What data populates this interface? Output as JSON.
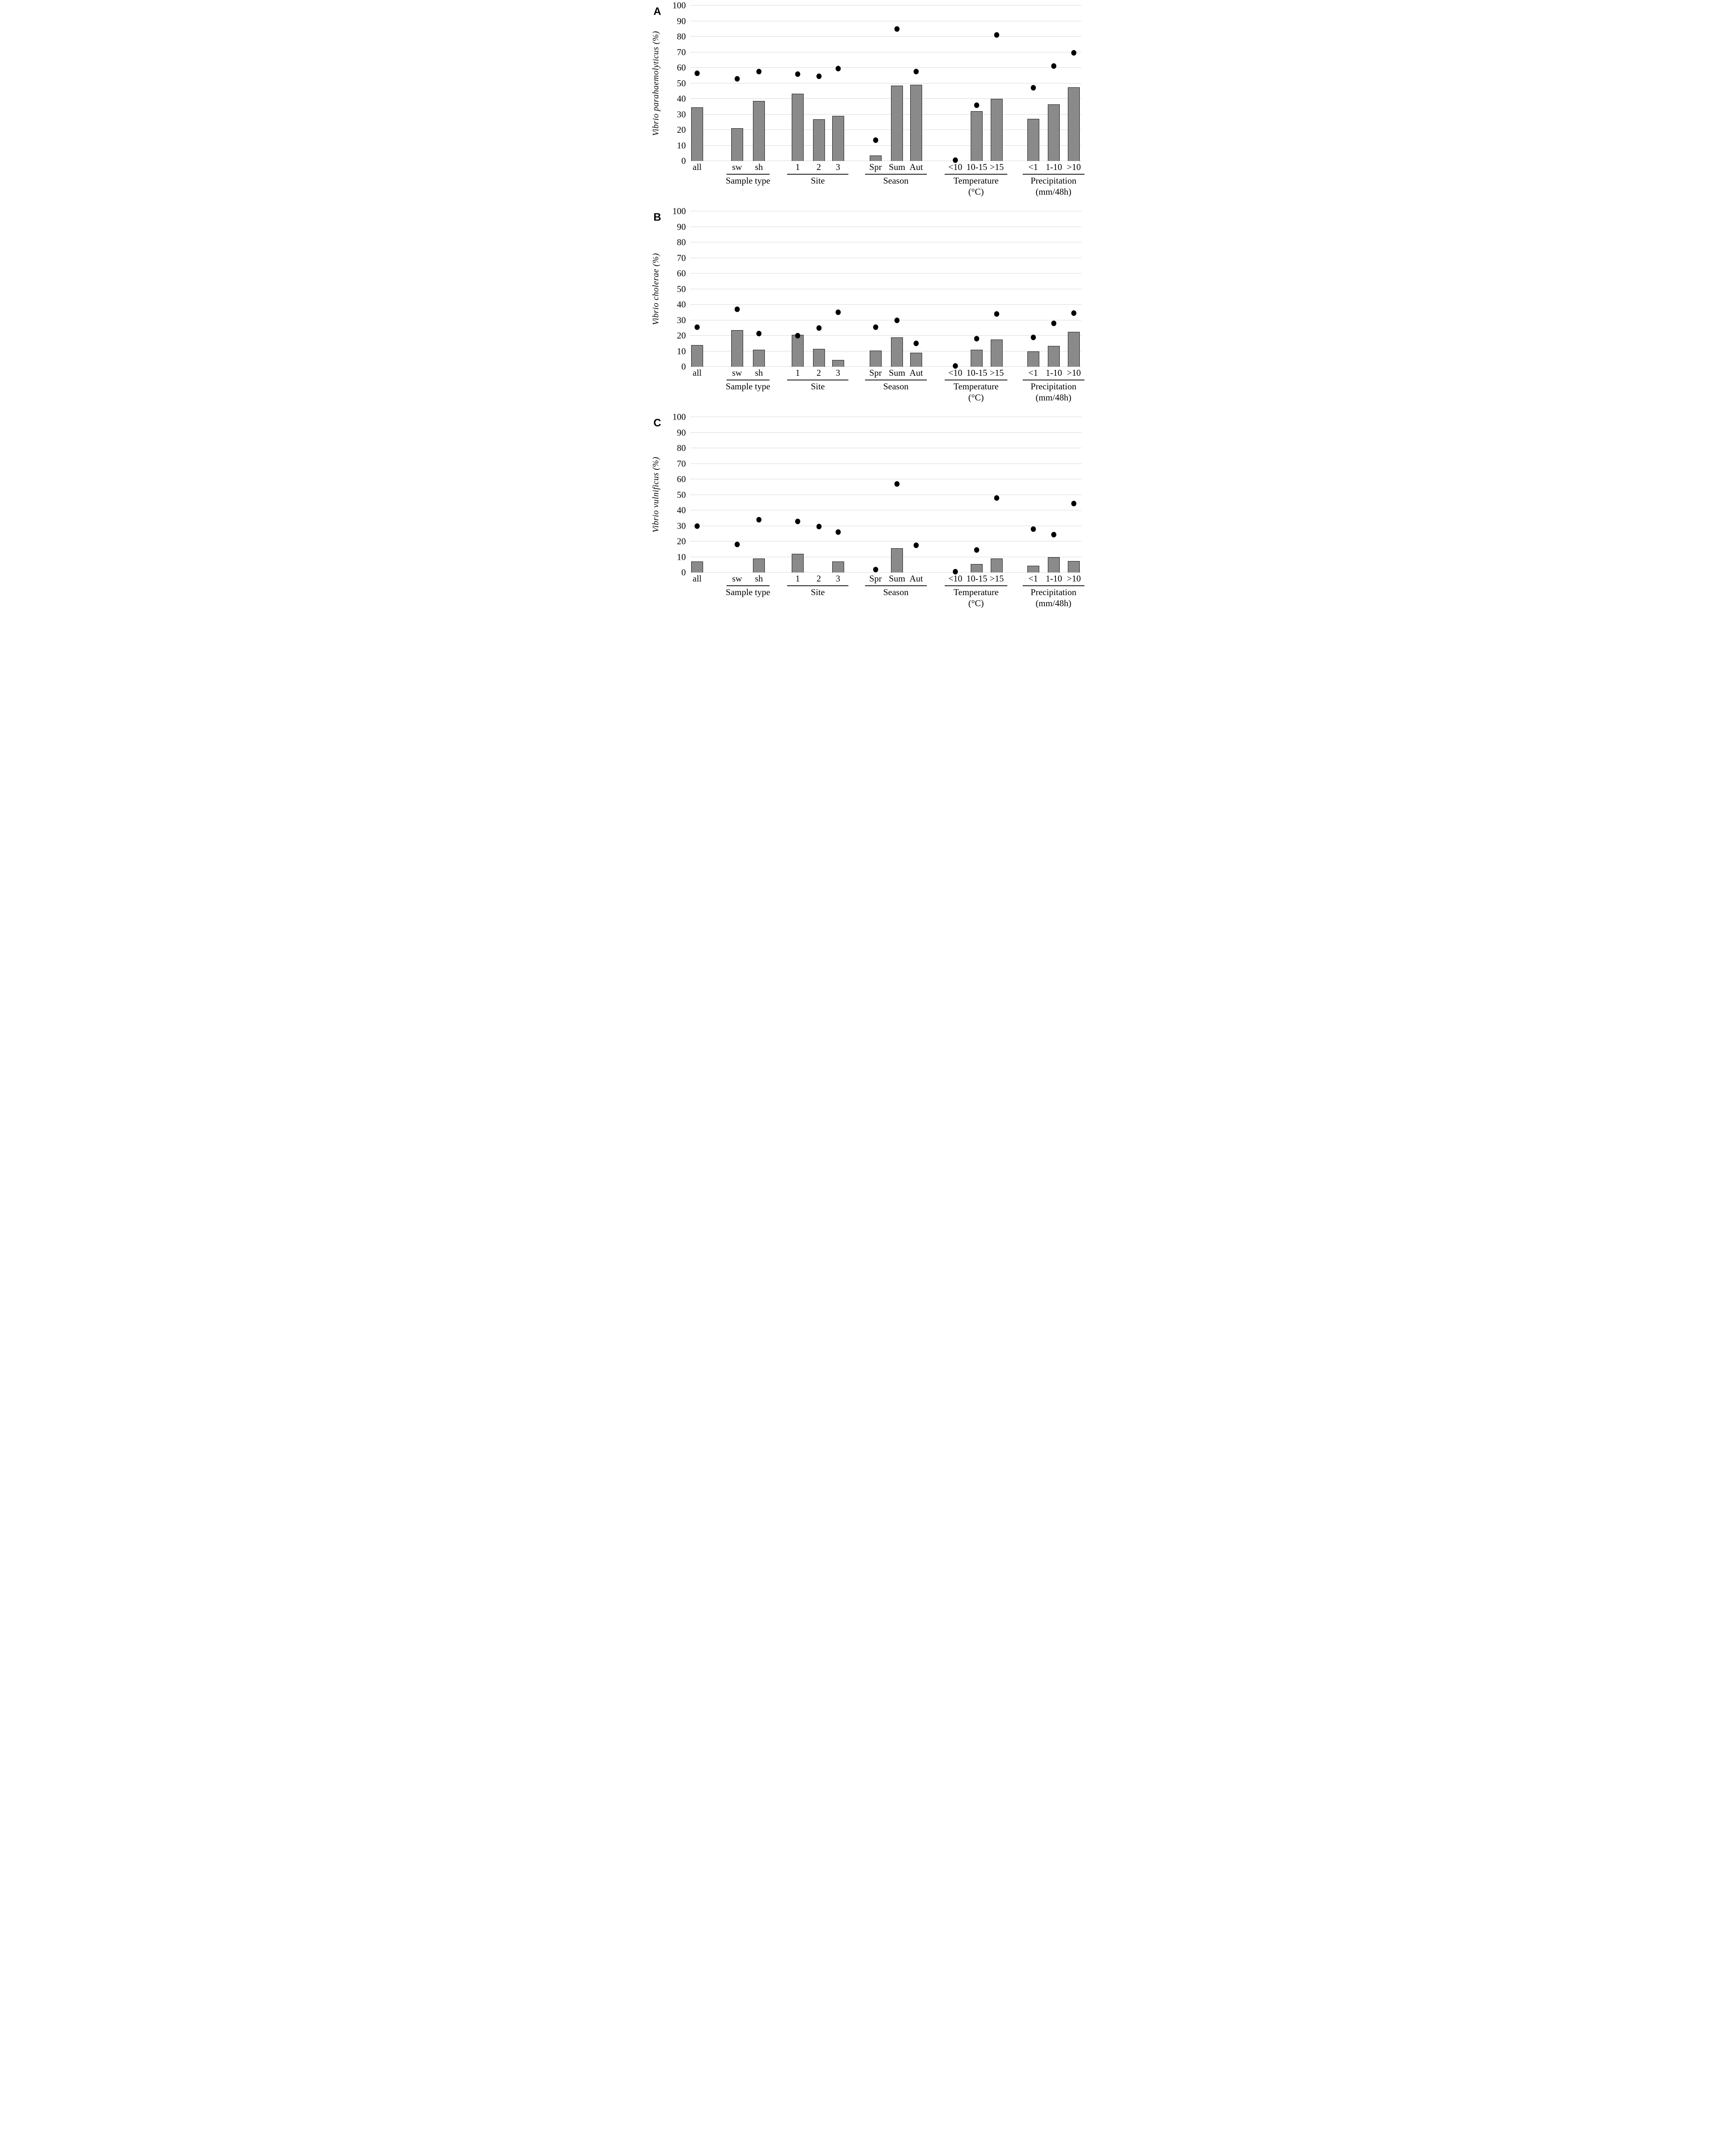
{
  "figure_title": "",
  "chart_data": {
    "type": "bar",
    "subtype": "bar-with-dot-overlay",
    "grid": true,
    "legend": "none",
    "ylim": [
      0,
      100
    ],
    "yticks": [
      0,
      10,
      20,
      30,
      40,
      50,
      60,
      70,
      80,
      90,
      100
    ],
    "colors": {
      "bar_fill": "#8a8a8a",
      "bar_border": "#1a1a1a",
      "dot": "#000000",
      "gridline": "#d9d9d9",
      "text": "#000000",
      "background": "#ffffff"
    },
    "panels": [
      {
        "letter": "A",
        "ylabel": "Vibrio parahaemolyticus (%)",
        "groups": [
          {
            "label": "",
            "label2": "",
            "categories": [
              {
                "x": "all",
                "center": 0.018,
                "bar": 34.5,
                "dot": 56.5
              }
            ]
          },
          {
            "label": "Sample type",
            "label2": "",
            "categories": [
              {
                "x": "sw",
                "center": 0.12,
                "bar": 21,
                "dot": 53
              },
              {
                "x": "sh",
                "center": 0.176,
                "bar": 38.5,
                "dot": 57.5
              }
            ]
          },
          {
            "label": "Site",
            "label2": "",
            "categories": [
              {
                "x": "1",
                "center": 0.275,
                "bar": 43.3,
                "dot": 56
              },
              {
                "x": "2",
                "center": 0.329,
                "bar": 26.8,
                "dot": 54.5
              },
              {
                "x": "3",
                "center": 0.378,
                "bar": 29,
                "dot": 59.5
              }
            ]
          },
          {
            "label": "Season",
            "label2": "",
            "categories": [
              {
                "x": "Spr",
                "center": 0.474,
                "bar": 3.5,
                "dot": 13.5
              },
              {
                "x": "Sum",
                "center": 0.529,
                "bar": 48.5,
                "dot": 85
              },
              {
                "x": "Aut",
                "center": 0.578,
                "bar": 49,
                "dot": 57.5
              }
            ]
          },
          {
            "label": "Temperature",
            "label2": "(°C)",
            "categories": [
              {
                "x": "<10",
                "center": 0.678,
                "bar": 0,
                "dot": 0.5
              },
              {
                "x": "10-15",
                "center": 0.733,
                "bar": 32,
                "dot": 36
              },
              {
                "x": ">15",
                "center": 0.784,
                "bar": 40,
                "dot": 81
              }
            ]
          },
          {
            "label": "Precipitation",
            "label2": "(mm/48h)",
            "categories": [
              {
                "x": "<1",
                "center": 0.877,
                "bar": 27,
                "dot": 47
              },
              {
                "x": "1-10",
                "center": 0.93,
                "bar": 36.5,
                "dot": 61
              },
              {
                "x": ">10",
                "center": 0.981,
                "bar": 47.5,
                "dot": 69.5
              }
            ]
          }
        ]
      },
      {
        "letter": "B",
        "ylabel": "Vibrio cholerae (%)",
        "groups": [
          {
            "label": "",
            "label2": "",
            "categories": [
              {
                "x": "all",
                "center": 0.018,
                "bar": 14,
                "dot": 25.5
              }
            ]
          },
          {
            "label": "Sample type",
            "label2": "",
            "categories": [
              {
                "x": "sw",
                "center": 0.12,
                "bar": 23.5,
                "dot": 37
              },
              {
                "x": "sh",
                "center": 0.176,
                "bar": 11,
                "dot": 21.5
              }
            ]
          },
          {
            "label": "Site",
            "label2": "",
            "categories": [
              {
                "x": "1",
                "center": 0.275,
                "bar": 20.5,
                "dot": 20
              },
              {
                "x": "2",
                "center": 0.329,
                "bar": 11.5,
                "dot": 25
              },
              {
                "x": "3",
                "center": 0.378,
                "bar": 4.5,
                "dot": 35
              }
            ]
          },
          {
            "label": "Season",
            "label2": "",
            "categories": [
              {
                "x": "Spr",
                "center": 0.474,
                "bar": 10.5,
                "dot": 25.5
              },
              {
                "x": "Sum",
                "center": 0.529,
                "bar": 19,
                "dot": 30
              },
              {
                "x": "Aut",
                "center": 0.578,
                "bar": 9,
                "dot": 15
              }
            ]
          },
          {
            "label": "Temperature",
            "label2": "(°C)",
            "categories": [
              {
                "x": "<10",
                "center": 0.678,
                "bar": 0,
                "dot": 0.5
              },
              {
                "x": "10-15",
                "center": 0.733,
                "bar": 11,
                "dot": 18
              },
              {
                "x": ">15",
                "center": 0.784,
                "bar": 17.5,
                "dot": 34
              }
            ]
          },
          {
            "label": "Precipitation",
            "label2": "(mm/48h)",
            "categories": [
              {
                "x": "<1",
                "center": 0.877,
                "bar": 10,
                "dot": 19
              },
              {
                "x": "1-10",
                "center": 0.93,
                "bar": 13.5,
                "dot": 28
              },
              {
                "x": ">10",
                "center": 0.981,
                "bar": 22.5,
                "dot": 34.5
              }
            ]
          }
        ]
      },
      {
        "letter": "C",
        "ylabel": "Vibrio vulnificus (%)",
        "groups": [
          {
            "label": "",
            "label2": "",
            "categories": [
              {
                "x": "all",
                "center": 0.018,
                "bar": 7,
                "dot": 30
              }
            ]
          },
          {
            "label": "Sample type",
            "label2": "",
            "categories": [
              {
                "x": "sw",
                "center": 0.12,
                "bar": 0,
                "dot": 18
              },
              {
                "x": "sh",
                "center": 0.176,
                "bar": 9,
                "dot": 34
              }
            ]
          },
          {
            "label": "Site",
            "label2": "",
            "categories": [
              {
                "x": "1",
                "center": 0.275,
                "bar": 12,
                "dot": 33
              },
              {
                "x": "2",
                "center": 0.329,
                "bar": 0,
                "dot": 29.5
              },
              {
                "x": "3",
                "center": 0.378,
                "bar": 7,
                "dot": 26
              }
            ]
          },
          {
            "label": "Season",
            "label2": "",
            "categories": [
              {
                "x": "Spr",
                "center": 0.474,
                "bar": 0,
                "dot": 2
              },
              {
                "x": "Sum",
                "center": 0.529,
                "bar": 15.5,
                "dot": 57
              },
              {
                "x": "Aut",
                "center": 0.578,
                "bar": 0,
                "dot": 17.5
              }
            ]
          },
          {
            "label": "Temperature",
            "label2": "(°C)",
            "categories": [
              {
                "x": "<10",
                "center": 0.678,
                "bar": 0,
                "dot": 0.5
              },
              {
                "x": "10-15",
                "center": 0.733,
                "bar": 5.5,
                "dot": 14.5
              },
              {
                "x": ">15",
                "center": 0.784,
                "bar": 9,
                "dot": 48
              }
            ]
          },
          {
            "label": "Precipitation",
            "label2": "(mm/48h)",
            "categories": [
              {
                "x": "<1",
                "center": 0.877,
                "bar": 4.5,
                "dot": 28
              },
              {
                "x": "1-10",
                "center": 0.93,
                "bar": 10,
                "dot": 24.5
              },
              {
                "x": ">10",
                "center": 0.981,
                "bar": 7.5,
                "dot": 44.5
              }
            ]
          }
        ]
      }
    ]
  }
}
